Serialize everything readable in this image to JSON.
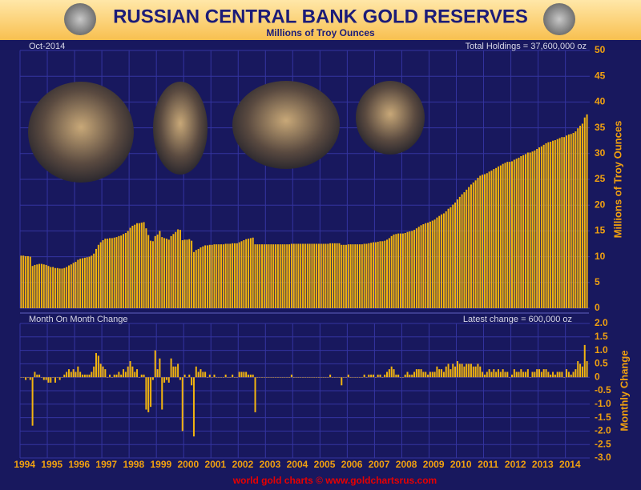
{
  "chart_data": [
    {
      "type": "bar",
      "title": "RUSSIAN CENTRAL BANK GOLD RESERVES",
      "subtitle": "Millions of Troy Ounces",
      "y_label": "Millions of Troy Ounces",
      "annotations": [
        "Oct-2014",
        "Total Holdings = 37,600,000 oz"
      ],
      "color": "#f2b410",
      "grid": true,
      "ylim": [
        0,
        50
      ],
      "yticks": [
        0,
        5,
        10,
        15,
        20,
        25,
        30,
        35,
        40,
        45,
        50
      ],
      "values": [
        10.2,
        10.2,
        10.1,
        10.1,
        10.0,
        8.2,
        8.4,
        8.5,
        8.6,
        8.6,
        8.5,
        8.4,
        8.2,
        8.0,
        8.0,
        7.8,
        7.8,
        7.7,
        7.7,
        7.8,
        8.0,
        8.3,
        8.5,
        8.8,
        9.0,
        9.4,
        9.6,
        9.7,
        9.8,
        9.9,
        10.0,
        10.2,
        10.6,
        11.5,
        12.3,
        12.8,
        13.2,
        13.5,
        13.5,
        13.6,
        13.6,
        13.7,
        13.8,
        14.0,
        14.1,
        14.4,
        14.6,
        15.0,
        15.6,
        16.0,
        16.2,
        16.5,
        16.5,
        16.6,
        16.7,
        15.5,
        14.2,
        13.1,
        13.0,
        14.0,
        14.3,
        15.0,
        13.8,
        13.6,
        13.5,
        13.3,
        14.0,
        14.4,
        14.8,
        15.3,
        15.2,
        13.2,
        13.3,
        13.3,
        13.4,
        13.1,
        10.9,
        11.3,
        11.5,
        11.8,
        12.0,
        12.2,
        12.2,
        12.3,
        12.3,
        12.4,
        12.4,
        12.4,
        12.4,
        12.4,
        12.5,
        12.5,
        12.5,
        12.6,
        12.6,
        12.6,
        12.8,
        13.0,
        13.2,
        13.4,
        13.5,
        13.6,
        13.7,
        12.4,
        12.4,
        12.4,
        12.4,
        12.4,
        12.4,
        12.4,
        12.4,
        12.4,
        12.4,
        12.4,
        12.4,
        12.4,
        12.4,
        12.4,
        12.4,
        12.5,
        12.5,
        12.5,
        12.5,
        12.5,
        12.5,
        12.5,
        12.5,
        12.5,
        12.5,
        12.5,
        12.5,
        12.5,
        12.5,
        12.5,
        12.5,
        12.5,
        12.6,
        12.6,
        12.6,
        12.6,
        12.6,
        12.3,
        12.3,
        12.3,
        12.4,
        12.4,
        12.4,
        12.4,
        12.4,
        12.4,
        12.4,
        12.5,
        12.5,
        12.6,
        12.7,
        12.8,
        12.8,
        12.9,
        13.0,
        13.0,
        13.1,
        13.3,
        13.6,
        14.0,
        14.3,
        14.4,
        14.5,
        14.5,
        14.5,
        14.6,
        14.8,
        14.9,
        15.0,
        15.2,
        15.5,
        15.8,
        16.1,
        16.3,
        16.5,
        16.6,
        16.8,
        17.0,
        17.2,
        17.6,
        17.9,
        18.2,
        18.4,
        18.8,
        19.3,
        19.6,
        20.1,
        20.5,
        21.1,
        21.6,
        22.1,
        22.5,
        23.0,
        23.5,
        24.0,
        24.4,
        24.8,
        25.3,
        25.7,
        25.9,
        26.0,
        26.2,
        26.5,
        26.7,
        27.0,
        27.2,
        27.5,
        27.7,
        28.0,
        28.2,
        28.4,
        28.4,
        28.5,
        28.8,
        29.0,
        29.2,
        29.5,
        29.7,
        29.9,
        30.2,
        30.2,
        30.4,
        30.6,
        30.9,
        31.2,
        31.4,
        31.7,
        32.0,
        32.2,
        32.3,
        32.5,
        32.6,
        32.8,
        33.0,
        33.2,
        33.2,
        33.5,
        33.7,
        33.8,
        34.0,
        34.3,
        34.9,
        35.4,
        35.8,
        37.0,
        37.6
      ]
    },
    {
      "type": "bar",
      "y_label": "Monthly Change",
      "source": "world gold charts © www.goldchartsrus.com",
      "annotations": [
        "Month On Month Change",
        "Latest change = 600,000 oz"
      ],
      "color": "#f2b410",
      "grid": true,
      "ylim": [
        -3,
        2
      ],
      "yticks": [
        {
          "value": 2,
          "label": "2.0"
        },
        1.5,
        {
          "value": 1,
          "label": "1.0"
        },
        0.5,
        0,
        -0.5,
        {
          "value": -1,
          "label": "-1.0"
        },
        -1.5,
        {
          "value": -2,
          "label": "-2.0"
        },
        -2.5,
        {
          "value": -3,
          "label": "-3.0"
        }
      ],
      "categories": [
        "1994",
        null,
        null,
        null,
        null,
        null,
        null,
        null,
        null,
        null,
        null,
        null,
        "1995",
        null,
        null,
        null,
        null,
        null,
        null,
        null,
        null,
        null,
        null,
        null,
        "1996",
        null,
        null,
        null,
        null,
        null,
        null,
        null,
        null,
        null,
        null,
        null,
        "1997",
        null,
        null,
        null,
        null,
        null,
        null,
        null,
        null,
        null,
        null,
        null,
        "1998",
        null,
        null,
        null,
        null,
        null,
        null,
        null,
        null,
        null,
        null,
        null,
        "1999",
        null,
        null,
        null,
        null,
        null,
        null,
        null,
        null,
        null,
        null,
        null,
        "2000",
        null,
        null,
        null,
        null,
        null,
        null,
        null,
        null,
        null,
        null,
        null,
        "2001",
        null,
        null,
        null,
        null,
        null,
        null,
        null,
        null,
        null,
        null,
        null,
        "2002",
        null,
        null,
        null,
        null,
        null,
        null,
        null,
        null,
        null,
        null,
        null,
        "2003",
        null,
        null,
        null,
        null,
        null,
        null,
        null,
        null,
        null,
        null,
        null,
        "2004",
        null,
        null,
        null,
        null,
        null,
        null,
        null,
        null,
        null,
        null,
        null,
        "2005",
        null,
        null,
        null,
        null,
        null,
        null,
        null,
        null,
        null,
        null,
        null,
        "2006",
        null,
        null,
        null,
        null,
        null,
        null,
        null,
        null,
        null,
        null,
        null,
        "2007",
        null,
        null,
        null,
        null,
        null,
        null,
        null,
        null,
        null,
        null,
        null,
        "2008",
        null,
        null,
        null,
        null,
        null,
        null,
        null,
        null,
        null,
        null,
        null,
        "2009",
        null,
        null,
        null,
        null,
        null,
        null,
        null,
        null,
        null,
        null,
        null,
        "2010",
        null,
        null,
        null,
        null,
        null,
        null,
        null,
        null,
        null,
        null,
        null,
        "2011",
        null,
        null,
        null,
        null,
        null,
        null,
        null,
        null,
        null,
        null,
        null,
        "2012",
        null,
        null,
        null,
        null,
        null,
        null,
        null,
        null,
        null,
        null,
        null,
        "2013",
        null,
        null,
        null,
        null,
        null,
        null,
        null,
        null,
        null,
        null,
        null,
        "2014",
        null,
        null,
        null,
        null,
        null,
        null,
        null,
        null,
        null
      ],
      "values": [
        0,
        0,
        -0.1,
        0,
        -0.1,
        -1.8,
        0.2,
        0.1,
        0.1,
        0,
        -0.1,
        -0.1,
        -0.2,
        -0.2,
        0,
        -0.2,
        0,
        -0.1,
        0,
        0.1,
        0.2,
        0.3,
        0.2,
        0.3,
        0.2,
        0.4,
        0.2,
        0.1,
        0.1,
        0.1,
        0.1,
        0.2,
        0.4,
        0.9,
        0.8,
        0.5,
        0.4,
        0.3,
        0,
        0.1,
        0,
        0.1,
        0.1,
        0.2,
        0.1,
        0.3,
        0.2,
        0.4,
        0.6,
        0.4,
        0.2,
        0.3,
        0,
        0.1,
        0.1,
        -1.2,
        -1.3,
        -1.1,
        -0.1,
        1.0,
        0.3,
        0.7,
        -1.2,
        -0.2,
        -0.1,
        -0.2,
        0.7,
        0.4,
        0.4,
        0.5,
        -0.1,
        -2.0,
        0.1,
        0,
        0.1,
        -0.3,
        -2.2,
        0.4,
        0.2,
        0.3,
        0.2,
        0.2,
        0,
        0.1,
        0,
        0.1,
        0,
        0,
        0,
        0,
        0.1,
        0,
        0,
        0.1,
        0,
        0,
        0.2,
        0.2,
        0.2,
        0.2,
        0.1,
        0.1,
        0.1,
        -1.3,
        0,
        0,
        0,
        0,
        0,
        0,
        0,
        0,
        0,
        0,
        0,
        0,
        0,
        0,
        0,
        0.1,
        0,
        0,
        0,
        0,
        0,
        0,
        0,
        0,
        0,
        0,
        0,
        0,
        0,
        0,
        0,
        0,
        0.1,
        0,
        0,
        0,
        0,
        -0.3,
        0,
        0,
        0.1,
        0,
        0,
        0,
        0,
        0,
        0,
        0.1,
        0,
        0.1,
        0.1,
        0.1,
        0,
        0.1,
        0.1,
        0,
        0.1,
        0.2,
        0.3,
        0.4,
        0.3,
        0.1,
        0.1,
        0,
        0,
        0.1,
        0.2,
        0.1,
        0.1,
        0.2,
        0.3,
        0.3,
        0.3,
        0.2,
        0.2,
        0.1,
        0.2,
        0.2,
        0.2,
        0.4,
        0.3,
        0.3,
        0.2,
        0.4,
        0.5,
        0.3,
        0.5,
        0.4,
        0.6,
        0.5,
        0.5,
        0.4,
        0.5,
        0.5,
        0.5,
        0.4,
        0.4,
        0.5,
        0.4,
        0.2,
        0.1,
        0.2,
        0.3,
        0.2,
        0.3,
        0.2,
        0.3,
        0.2,
        0.3,
        0.2,
        0.2,
        0,
        0.1,
        0.3,
        0.2,
        0.2,
        0.3,
        0.2,
        0.2,
        0.3,
        0,
        0.2,
        0.2,
        0.3,
        0.3,
        0.2,
        0.3,
        0.3,
        0.2,
        0.1,
        0.2,
        0.1,
        0.2,
        0.2,
        0.2,
        0,
        0.3,
        0.2,
        0.1,
        0.2,
        0.3,
        0.6,
        0.5,
        0.4,
        1.2,
        0.6
      ]
    }
  ]
}
